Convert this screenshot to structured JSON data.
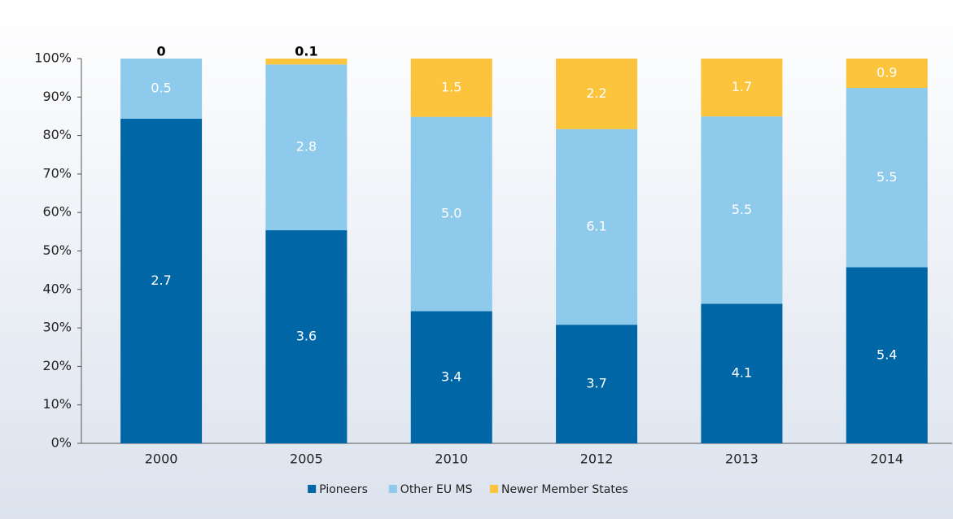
{
  "chart_data": {
    "type": "bar",
    "stacked": "percent",
    "categories": [
      "2000",
      "2005",
      "2010",
      "2012",
      "2013",
      "2014"
    ],
    "series": [
      {
        "name": "Pioneers",
        "color": "#0066a6",
        "values": [
          2.7,
          3.6,
          3.4,
          3.7,
          4.1,
          5.4
        ],
        "value_labels": [
          "2.7",
          "3.6",
          "3.4",
          "3.7",
          "4.1",
          "5.4"
        ]
      },
      {
        "name": "Other EU MS",
        "color": "#8dcaec",
        "values": [
          0.5,
          2.8,
          5.0,
          6.1,
          5.5,
          5.5
        ],
        "value_labels": [
          "0.5",
          "2.8",
          "5.0",
          "6.1",
          "5.5",
          "5.5"
        ]
      },
      {
        "name": "Newer Member States",
        "color": "#fcc33c",
        "values": [
          0,
          0.1,
          1.5,
          2.2,
          1.7,
          0.9
        ],
        "value_labels": [
          "0",
          "0.1",
          "1.5",
          "2.2",
          "1.7",
          "0.9"
        ]
      }
    ],
    "ylim": [
      0,
      100
    ],
    "yticks": [
      {
        "value": 0,
        "label": "0%"
      },
      {
        "value": 10,
        "label": "10%"
      },
      {
        "value": 20,
        "label": "20%"
      },
      {
        "value": 30,
        "label": "30%"
      },
      {
        "value": 40,
        "label": "40%"
      },
      {
        "value": 50,
        "label": "50%"
      },
      {
        "value": 60,
        "label": "60%"
      },
      {
        "value": 70,
        "label": "70%"
      },
      {
        "value": 80,
        "label": "80%"
      },
      {
        "value": 90,
        "label": "90%"
      },
      {
        "value": 100,
        "label": "100%"
      }
    ],
    "grid": false,
    "legend": "bottom"
  }
}
